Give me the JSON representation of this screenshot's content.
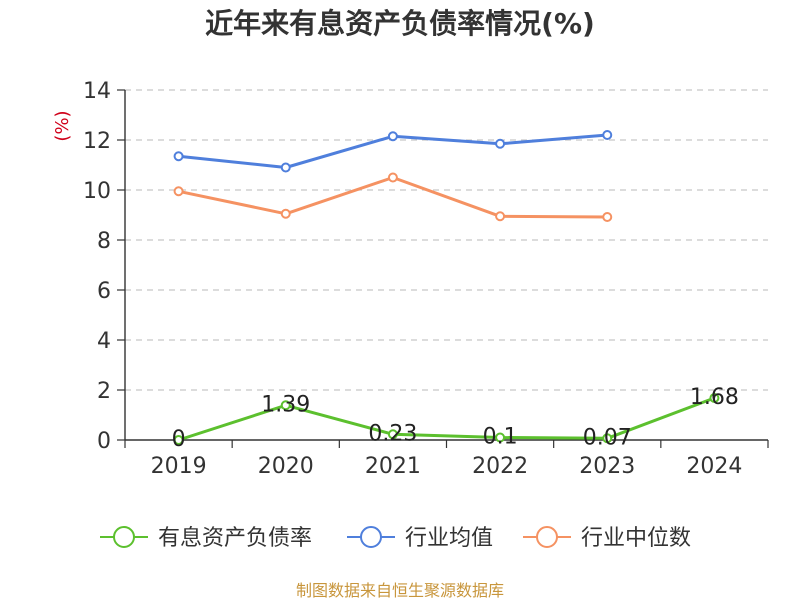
{
  "chart_data": {
    "type": "line",
    "title": "近年来有息资产负债率情况(%)",
    "ylabel": "(%)",
    "xlabel": "",
    "categories": [
      "2019",
      "2020",
      "2021",
      "2022",
      "2023",
      "2024"
    ],
    "ylim": [
      0,
      14
    ],
    "yticks": [
      0,
      2,
      4,
      6,
      8,
      10,
      12,
      14
    ],
    "grid": true,
    "legend_position": "bottom",
    "series": [
      {
        "name": "有息资产负债率",
        "color": "#5cc02e",
        "values": [
          0,
          1.39,
          0.23,
          0.1,
          0.07,
          1.68
        ],
        "data_labels": [
          "0",
          "1.39",
          "0.23",
          "0.1",
          "0.07",
          "1.68"
        ]
      },
      {
        "name": "行业均值",
        "color": "#4f7fdc",
        "values": [
          11.35,
          10.9,
          12.15,
          11.85,
          12.2,
          null
        ]
      },
      {
        "name": "行业中位数",
        "color": "#f59262",
        "values": [
          9.95,
          9.05,
          10.5,
          8.95,
          8.92,
          null
        ]
      }
    ],
    "ylabel_color": "#d0021b",
    "source_text": "制图数据来自恒生聚源数据库",
    "source_color": "#c8963c"
  }
}
